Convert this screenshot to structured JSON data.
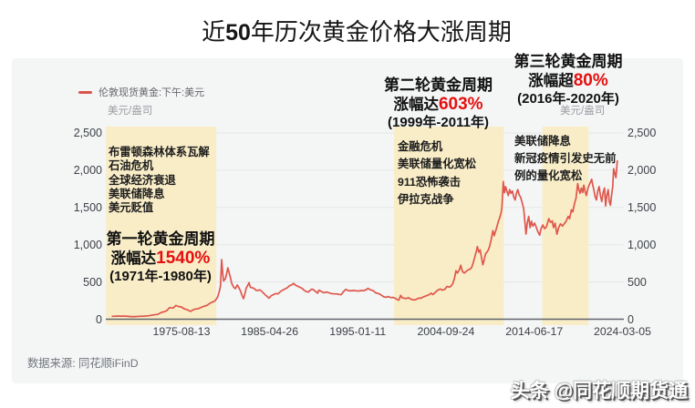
{
  "title": "近50年历次黄金价格大涨周期",
  "chart_data": {
    "type": "line",
    "legend": "伦敦现货黄金:下午:美元",
    "y_unit": "美元/盎司",
    "ylim": [
      0,
      2500
    ],
    "grid": "horizontal",
    "line_color": "#df574c",
    "band_color": "#f9edc8",
    "accent_red": "#e60f0f",
    "y_ticks": [
      {
        "value": 0,
        "label": "0"
      },
      {
        "value": 500,
        "label": "500"
      },
      {
        "value": 1000,
        "label": "1,000"
      },
      {
        "value": 1500,
        "label": "1,500"
      },
      {
        "value": 2000,
        "label": "2,000"
      },
      {
        "value": 2500,
        "label": "2,500"
      }
    ],
    "x_ticks": [
      {
        "year": 1975.617,
        "label": "1975-08-13"
      },
      {
        "year": 1985.318,
        "label": "1985-04-26"
      },
      {
        "year": 1995.03,
        "label": "1995-01-11"
      },
      {
        "year": 2004.732,
        "label": "2004-09-24"
      },
      {
        "year": 2014.46,
        "label": "2014-06-17"
      },
      {
        "year": 2024.175,
        "label": "2024-03-05"
      }
    ],
    "bands": [
      {
        "from_year": 1967.3,
        "to_year": 1979.45
      },
      {
        "from_year": 1999.0,
        "to_year": 2011.1
      },
      {
        "from_year": 2015.35,
        "to_year": 2020.45
      }
    ],
    "series": [
      {
        "name": "伦敦现货黄金:下午:美元",
        "points": [
          [
            1968,
            39
          ],
          [
            1968.5,
            41
          ],
          [
            1969,
            42
          ],
          [
            1969.5,
            41
          ],
          [
            1970,
            36
          ],
          [
            1970.5,
            36
          ],
          [
            1971,
            39
          ],
          [
            1971.5,
            41
          ],
          [
            1972,
            46
          ],
          [
            1972.5,
            58
          ],
          [
            1973,
            65
          ],
          [
            1973.4,
            90
          ],
          [
            1973.7,
            100
          ],
          [
            1974,
            115
          ],
          [
            1974.3,
            155
          ],
          [
            1974.7,
            150
          ],
          [
            1975,
            185
          ],
          [
            1975.3,
            170
          ],
          [
            1975.6,
            165
          ],
          [
            1975.9,
            140
          ],
          [
            1976.2,
            130
          ],
          [
            1976.6,
            105
          ],
          [
            1977,
            132
          ],
          [
            1977.5,
            143
          ],
          [
            1978,
            170
          ],
          [
            1978.4,
            185
          ],
          [
            1978.7,
            210
          ],
          [
            1979,
            230
          ],
          [
            1979.3,
            245
          ],
          [
            1979.6,
            300
          ],
          [
            1979.8,
            385
          ],
          [
            1979.92,
            450
          ],
          [
            1980.04,
            800
          ],
          [
            1980.15,
            630
          ],
          [
            1980.25,
            515
          ],
          [
            1980.45,
            540
          ],
          [
            1980.6,
            615
          ],
          [
            1980.72,
            690
          ],
          [
            1980.85,
            630
          ],
          [
            1981,
            560
          ],
          [
            1981.15,
            480
          ],
          [
            1981.35,
            430
          ],
          [
            1981.55,
            410
          ],
          [
            1981.75,
            460
          ],
          [
            1981.9,
            430
          ],
          [
            1982.1,
            380
          ],
          [
            1982.3,
            315
          ],
          [
            1982.45,
            275
          ],
          [
            1982.6,
            340
          ],
          [
            1982.75,
            420
          ],
          [
            1982.9,
            450
          ],
          [
            1983.05,
            490
          ],
          [
            1983.2,
            430
          ],
          [
            1983.4,
            420
          ],
          [
            1983.6,
            415
          ],
          [
            1983.8,
            390
          ],
          [
            1984,
            385
          ],
          [
            1984.2,
            395
          ],
          [
            1984.45,
            375
          ],
          [
            1984.7,
            345
          ],
          [
            1984.9,
            320
          ],
          [
            1985.1,
            300
          ],
          [
            1985.25,
            282
          ],
          [
            1985.5,
            315
          ],
          [
            1985.75,
            330
          ],
          [
            1986,
            345
          ],
          [
            1986.25,
            340
          ],
          [
            1986.5,
            370
          ],
          [
            1986.75,
            390
          ],
          [
            1987,
            405
          ],
          [
            1987.25,
            420
          ],
          [
            1987.5,
            450
          ],
          [
            1987.75,
            460
          ],
          [
            1987.95,
            480
          ],
          [
            1988.2,
            455
          ],
          [
            1988.45,
            440
          ],
          [
            1988.7,
            425
          ],
          [
            1988.9,
            415
          ],
          [
            1989.1,
            390
          ],
          [
            1989.35,
            370
          ],
          [
            1989.6,
            365
          ],
          [
            1989.8,
            390
          ],
          [
            1990,
            405
          ],
          [
            1990.2,
            390
          ],
          [
            1990.4,
            370
          ],
          [
            1990.6,
            350
          ],
          [
            1990.75,
            390
          ],
          [
            1990.9,
            380
          ],
          [
            1991.1,
            365
          ],
          [
            1991.35,
            355
          ],
          [
            1991.6,
            365
          ],
          [
            1991.85,
            355
          ],
          [
            1992.1,
            345
          ],
          [
            1992.4,
            340
          ],
          [
            1992.7,
            340
          ],
          [
            1992.95,
            333
          ],
          [
            1993.2,
            330
          ],
          [
            1993.45,
            370
          ],
          [
            1993.7,
            400
          ],
          [
            1993.95,
            385
          ],
          [
            1994.2,
            380
          ],
          [
            1994.5,
            385
          ],
          [
            1994.8,
            383
          ],
          [
            1995.1,
            378
          ],
          [
            1995.4,
            385
          ],
          [
            1995.7,
            383
          ],
          [
            1996,
            400
          ],
          [
            1996.15,
            415
          ],
          [
            1996.4,
            395
          ],
          [
            1996.7,
            385
          ],
          [
            1997,
            355
          ],
          [
            1997.3,
            345
          ],
          [
            1997.6,
            325
          ],
          [
            1997.9,
            300
          ],
          [
            1998.15,
            295
          ],
          [
            1998.4,
            305
          ],
          [
            1998.65,
            290
          ],
          [
            1998.9,
            292
          ],
          [
            1999.15,
            283
          ],
          [
            1999.4,
            260
          ],
          [
            1999.55,
            255
          ],
          [
            1999.75,
            320
          ],
          [
            1999.9,
            290
          ],
          [
            2000.1,
            282
          ],
          [
            2000.35,
            278
          ],
          [
            2000.6,
            288
          ],
          [
            2000.85,
            270
          ],
          [
            2001.1,
            262
          ],
          [
            2001.3,
            258
          ],
          [
            2001.55,
            272
          ],
          [
            2001.75,
            283
          ],
          [
            2002,
            282
          ],
          [
            2002.3,
            302
          ],
          [
            2002.6,
            315
          ],
          [
            2002.9,
            330
          ],
          [
            2003.1,
            350
          ],
          [
            2003.3,
            330
          ],
          [
            2003.6,
            365
          ],
          [
            2003.9,
            395
          ],
          [
            2004.1,
            405
          ],
          [
            2004.35,
            390
          ],
          [
            2004.6,
            400
          ],
          [
            2004.85,
            440
          ],
          [
            2005.1,
            430
          ],
          [
            2005.3,
            445
          ],
          [
            2005.5,
            480
          ],
          [
            2005.7,
            560
          ],
          [
            2005.84,
            650
          ],
          [
            2006,
            620
          ],
          [
            2006.2,
            660
          ],
          [
            2006.37,
            725
          ],
          [
            2006.55,
            640
          ],
          [
            2006.75,
            620
          ],
          [
            2006.95,
            640
          ],
          [
            2007.15,
            660
          ],
          [
            2007.35,
            670
          ],
          [
            2007.55,
            690
          ],
          [
            2007.75,
            760
          ],
          [
            2007.95,
            850
          ],
          [
            2008.1,
            920
          ],
          [
            2008.2,
            975
          ],
          [
            2008.35,
            900
          ],
          [
            2008.5,
            930
          ],
          [
            2008.65,
            830
          ],
          [
            2008.8,
            730
          ],
          [
            2008.95,
            800
          ],
          [
            2009.1,
            880
          ],
          [
            2009.25,
            900
          ],
          [
            2009.4,
            930
          ],
          [
            2009.55,
            980
          ],
          [
            2009.7,
            1060
          ],
          [
            2009.9,
            1190
          ],
          [
            2010.05,
            1120
          ],
          [
            2010.2,
            1180
          ],
          [
            2010.35,
            1240
          ],
          [
            2010.5,
            1310
          ],
          [
            2010.65,
            1360
          ],
          [
            2010.8,
            1420
          ],
          [
            2010.9,
            1500
          ],
          [
            2011.05,
            1848
          ],
          [
            2011.18,
            1697
          ],
          [
            2011.3,
            1780
          ],
          [
            2011.45,
            1718
          ],
          [
            2011.6,
            1660
          ],
          [
            2011.75,
            1740
          ],
          [
            2011.9,
            1690
          ],
          [
            2012.05,
            1720
          ],
          [
            2012.2,
            1640
          ],
          [
            2012.35,
            1600
          ],
          [
            2012.5,
            1690
          ],
          [
            2012.65,
            1740
          ],
          [
            2012.8,
            1670
          ],
          [
            2012.95,
            1640
          ],
          [
            2013.1,
            1580
          ],
          [
            2013.3,
            1480
          ],
          [
            2013.45,
            1280
          ],
          [
            2013.55,
            1143
          ],
          [
            2013.7,
            1300
          ],
          [
            2013.85,
            1380
          ],
          [
            2014,
            1230
          ],
          [
            2014.15,
            1315
          ],
          [
            2014.3,
            1250
          ],
          [
            2014.5,
            1290
          ],
          [
            2014.7,
            1230
          ],
          [
            2014.85,
            1180
          ],
          [
            2015.06,
            1127
          ],
          [
            2015.2,
            1210
          ],
          [
            2015.4,
            1265
          ],
          [
            2015.6,
            1215
          ],
          [
            2015.8,
            1240
          ],
          [
            2016.06,
            1350
          ],
          [
            2016.25,
            1300
          ],
          [
            2016.45,
            1320
          ],
          [
            2016.57,
            1230
          ],
          [
            2016.75,
            1290
          ],
          [
            2016.95,
            1140
          ],
          [
            2017.15,
            1230
          ],
          [
            2017.35,
            1280
          ],
          [
            2017.57,
            1250
          ],
          [
            2017.75,
            1280
          ],
          [
            2017.95,
            1310
          ],
          [
            2018.2,
            1380
          ],
          [
            2018.35,
            1350
          ],
          [
            2018.55,
            1470
          ],
          [
            2018.7,
            1440
          ],
          [
            2018.9,
            1560
          ],
          [
            2019.05,
            1620
          ],
          [
            2019.15,
            1730
          ],
          [
            2019.24,
            1820
          ],
          [
            2019.35,
            1750
          ],
          [
            2019.5,
            1690
          ],
          [
            2019.65,
            1760
          ],
          [
            2019.8,
            1700
          ],
          [
            2019.92,
            1800
          ],
          [
            2020.05,
            1720
          ],
          [
            2020.2,
            1660
          ],
          [
            2020.35,
            1750
          ],
          [
            2020.5,
            1800
          ],
          [
            2020.65,
            1840
          ],
          [
            2020.78,
            1880
          ],
          [
            2020.9,
            1800
          ],
          [
            2021,
            1750
          ],
          [
            2021.15,
            1650
          ],
          [
            2021.3,
            1600
          ],
          [
            2021.45,
            1720
          ],
          [
            2021.6,
            1780
          ],
          [
            2021.75,
            1660
          ],
          [
            2021.9,
            1580
          ],
          [
            2022.05,
            1700
          ],
          [
            2022.2,
            1760
          ],
          [
            2022.32,
            1520
          ],
          [
            2022.45,
            1660
          ],
          [
            2022.6,
            1740
          ],
          [
            2022.72,
            1580
          ],
          [
            2022.85,
            1530
          ],
          [
            2022.95,
            1640
          ],
          [
            2023.1,
            1780
          ],
          [
            2023.2,
            2020
          ],
          [
            2023.35,
            1950
          ],
          [
            2023.45,
            1900
          ],
          [
            2023.6,
            2125
          ]
        ]
      }
    ]
  },
  "annotations": {
    "cycles": [
      {
        "title": "第一轮黄金周期",
        "gain_prefix": "涨幅达",
        "gain_pct": "1540%",
        "period": "(1971年-1980年)",
        "events": [
          "布雷顿森林体系瓦解",
          "石油危机",
          "全球经济衰退",
          "美联储降息",
          "美元贬值"
        ]
      },
      {
        "title": "第二轮黄金周期",
        "gain_prefix": "涨幅达",
        "gain_pct": "603%",
        "period": "(1999年-2011年)",
        "events": [
          "金融危机",
          "美联储量化宽松",
          "911恐怖袭击",
          "伊拉克战争"
        ]
      },
      {
        "title": "第三轮黄金周期",
        "gain_prefix": "涨幅超",
        "gain_pct": "80%",
        "period": "(2016年-2020年)",
        "events": [
          "美联储降息",
          "新冠疫情引发史无前例的量化宽松"
        ]
      }
    ]
  },
  "footer": {
    "source": "数据来源: 同花顺iFinD",
    "watermark": "头条 @同花顺期货通"
  }
}
